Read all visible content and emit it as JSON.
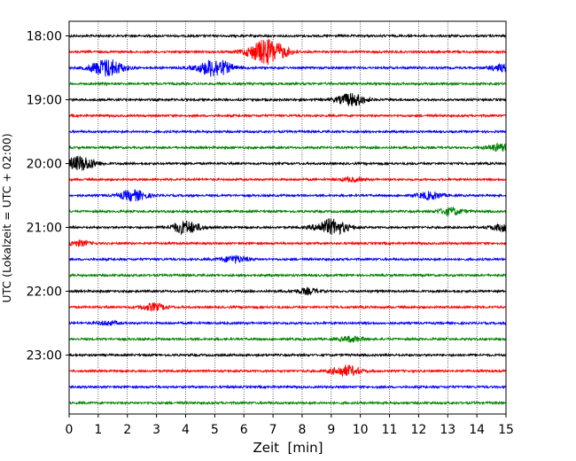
{
  "chart_data": {
    "type": "line",
    "title": "",
    "xlabel": "Zeit  [min]",
    "ylabel": "UTC (Lokalzeit = UTC + 02:00)",
    "xlim": [
      0,
      15
    ],
    "x_ticks": [
      "0",
      "1",
      "2",
      "3",
      "4",
      "5",
      "6",
      "7",
      "8",
      "9",
      "10",
      "11",
      "12",
      "13",
      "14",
      "15"
    ],
    "y_tick_labels": [
      "18:00",
      "19:00",
      "20:00",
      "21:00",
      "22:00",
      "23:00"
    ],
    "grid": "vertical dotted lines at each minute",
    "legend": "none",
    "trace_colors": [
      "#000000",
      "#ff0000",
      "#0000ff",
      "#008000"
    ],
    "rows": [
      {
        "start": "18:00",
        "color": "#000000",
        "bursts": []
      },
      {
        "start": "18:15",
        "color": "#ff0000",
        "bursts": [
          {
            "t": 6.8,
            "amp": 14
          }
        ]
      },
      {
        "start": "18:30",
        "color": "#0000ff",
        "bursts": [
          {
            "t": 1.3,
            "amp": 10
          },
          {
            "t": 5.0,
            "amp": 10
          },
          {
            "t": 14.9,
            "amp": 4
          }
        ]
      },
      {
        "start": "18:45",
        "color": "#008000",
        "bursts": []
      },
      {
        "start": "19:00",
        "color": "#000000",
        "bursts": [
          {
            "t": 9.7,
            "amp": 7
          }
        ]
      },
      {
        "start": "19:15",
        "color": "#ff0000",
        "bursts": []
      },
      {
        "start": "19:30",
        "color": "#0000ff",
        "bursts": []
      },
      {
        "start": "19:45",
        "color": "#008000",
        "bursts": [
          {
            "t": 14.8,
            "amp": 4
          }
        ]
      },
      {
        "start": "20:00",
        "color": "#000000",
        "bursts": [
          {
            "t": 0.4,
            "amp": 8
          }
        ]
      },
      {
        "start": "20:15",
        "color": "#ff0000",
        "bursts": [
          {
            "t": 9.7,
            "amp": 2
          }
        ]
      },
      {
        "start": "20:30",
        "color": "#0000ff",
        "bursts": [
          {
            "t": 2.2,
            "amp": 6
          },
          {
            "t": 12.4,
            "amp": 4
          }
        ]
      },
      {
        "start": "20:45",
        "color": "#008000",
        "bursts": [
          {
            "t": 13.1,
            "amp": 4
          }
        ]
      },
      {
        "start": "21:00",
        "color": "#000000",
        "bursts": [
          {
            "t": 4.0,
            "amp": 7
          },
          {
            "t": 9.0,
            "amp": 9
          },
          {
            "t": 14.9,
            "amp": 4
          }
        ]
      },
      {
        "start": "21:15",
        "color": "#ff0000",
        "bursts": [
          {
            "t": 0.3,
            "amp": 3
          }
        ]
      },
      {
        "start": "21:30",
        "color": "#0000ff",
        "bursts": [
          {
            "t": 5.7,
            "amp": 4
          }
        ]
      },
      {
        "start": "21:45",
        "color": "#008000",
        "bursts": []
      },
      {
        "start": "22:00",
        "color": "#000000",
        "bursts": [
          {
            "t": 8.2,
            "amp": 3
          }
        ]
      },
      {
        "start": "22:15",
        "color": "#ff0000",
        "bursts": [
          {
            "t": 2.9,
            "amp": 4
          }
        ]
      },
      {
        "start": "22:30",
        "color": "#0000ff",
        "bursts": [
          {
            "t": 1.3,
            "amp": 2
          }
        ]
      },
      {
        "start": "22:45",
        "color": "#008000",
        "bursts": [
          {
            "t": 9.7,
            "amp": 3
          }
        ]
      },
      {
        "start": "23:00",
        "color": "#000000",
        "bursts": []
      },
      {
        "start": "23:15",
        "color": "#ff0000",
        "bursts": [
          {
            "t": 9.5,
            "amp": 6
          }
        ]
      },
      {
        "start": "23:30",
        "color": "#0000ff",
        "bursts": []
      },
      {
        "start": "23:45",
        "color": "#008000",
        "bursts": []
      }
    ]
  }
}
